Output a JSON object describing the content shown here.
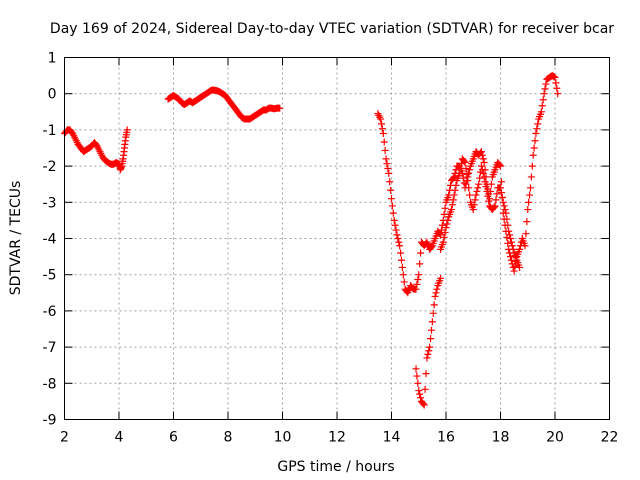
{
  "chart_data": {
    "type": "scatter",
    "title": "Day 169 of 2024, Sidereal Day-to-day VTEC variation (SDTVAR) for receiver bcar",
    "xlabel": "GPS time / hours",
    "ylabel": "SDTVAR / TECUs",
    "xlim": [
      2,
      22
    ],
    "ylim": [
      -9,
      1
    ],
    "xticks": [
      2,
      4,
      6,
      8,
      10,
      12,
      14,
      16,
      18,
      20,
      22
    ],
    "yticks": [
      1,
      0,
      -1,
      -2,
      -3,
      -4,
      -5,
      -6,
      -7,
      -8,
      -9
    ],
    "grid": true,
    "marker": "+",
    "series": [
      {
        "name": "bcar",
        "color": "#ff0000",
        "segments": [
          {
            "x": [
              2.0,
              2.1,
              2.2,
              2.3,
              2.4,
              2.5,
              2.6,
              2.7,
              2.8,
              2.9,
              3.0,
              3.1,
              3.2,
              3.3,
              3.4,
              3.5,
              3.6,
              3.7,
              3.8,
              3.9,
              4.0,
              4.05,
              4.1,
              4.15,
              4.2,
              4.25,
              4.3
            ],
            "y": [
              -1.1,
              -1.0,
              -1.0,
              -1.1,
              -1.25,
              -1.4,
              -1.5,
              -1.6,
              -1.55,
              -1.5,
              -1.45,
              -1.35,
              -1.45,
              -1.6,
              -1.75,
              -1.85,
              -1.9,
              -1.95,
              -1.95,
              -1.9,
              -1.95,
              -2.1,
              -2.0,
              -1.8,
              -1.5,
              -1.2,
              -1.0
            ]
          },
          {
            "x": [
              5.8,
              5.9,
              6.0,
              6.1,
              6.2,
              6.3,
              6.4,
              6.5,
              6.6,
              6.7,
              6.8,
              6.9,
              7.0,
              7.1,
              7.2,
              7.3,
              7.4,
              7.5,
              7.6,
              7.7,
              7.8,
              7.9,
              8.0,
              8.1,
              8.2,
              8.3,
              8.4,
              8.5,
              8.6,
              8.7,
              8.8,
              8.9,
              9.0,
              9.1,
              9.2,
              9.3,
              9.4,
              9.5,
              9.6,
              9.7,
              9.8,
              9.9
            ],
            "y": [
              -0.15,
              -0.1,
              -0.05,
              -0.1,
              -0.15,
              -0.25,
              -0.3,
              -0.25,
              -0.2,
              -0.25,
              -0.2,
              -0.15,
              -0.1,
              -0.05,
              0.0,
              0.05,
              0.1,
              0.1,
              0.08,
              0.05,
              0.0,
              -0.05,
              -0.15,
              -0.25,
              -0.35,
              -0.45,
              -0.55,
              -0.65,
              -0.7,
              -0.7,
              -0.7,
              -0.65,
              -0.6,
              -0.55,
              -0.5,
              -0.45,
              -0.45,
              -0.4,
              -0.4,
              -0.42,
              -0.4,
              -0.4
            ]
          },
          {
            "x": [
              13.5,
              13.6,
              13.7,
              13.8,
              13.9,
              14.0,
              14.1,
              14.2,
              14.3,
              14.4,
              14.5,
              14.6,
              14.7,
              14.8,
              14.9,
              15.0,
              15.1,
              15.2,
              15.3,
              15.4,
              15.5,
              15.6,
              15.7,
              15.8,
              15.9,
              16.0,
              16.1,
              16.2,
              16.3,
              16.4,
              16.5,
              16.6,
              16.7,
              16.8,
              16.9,
              17.0,
              17.1,
              17.2,
              17.3,
              17.4,
              17.5,
              17.6,
              17.7,
              17.8,
              17.9,
              18.0,
              18.1,
              18.2,
              18.3,
              18.4,
              18.5,
              18.6,
              18.7,
              18.8,
              18.9,
              19.0,
              19.1,
              19.2,
              19.3,
              19.4,
              19.5,
              19.6,
              19.7,
              19.8,
              19.9,
              20.0,
              20.1
            ],
            "y": [
              -0.55,
              -0.7,
              -1.1,
              -1.8,
              -2.2,
              -2.9,
              -3.5,
              -3.9,
              -4.2,
              -4.8,
              -5.4,
              -5.5,
              -5.3,
              -5.4,
              -5.4,
              -5.0,
              -4.1,
              -4.2,
              -4.1,
              -4.3,
              -4.2,
              -4.0,
              -3.8,
              -3.9,
              -3.5,
              -3.0,
              -2.8,
              -2.4,
              -2.3,
              -2.0,
              -2.0,
              -2.2,
              -2.6,
              -2.3,
              -2.0,
              -1.8,
              -1.6,
              -1.7,
              -1.6,
              -1.9,
              -2.5,
              -2.9,
              -2.3,
              -2.1,
              -1.9,
              -2.0,
              -3.3,
              -3.8,
              -4.3,
              -4.6,
              -4.9,
              -4.5,
              -4.3,
              -4.0,
              -4.2,
              -3.2,
              -2.6,
              -1.7,
              -1.1,
              -0.7,
              -0.5,
              0.0,
              0.4,
              0.45,
              0.5,
              0.45,
              0.0
            ]
          },
          {
            "x": [
              14.9,
              15.0,
              15.1,
              15.2,
              15.3,
              15.4,
              15.5,
              15.6,
              15.7,
              15.8
            ],
            "y": [
              -7.6,
              -8.2,
              -8.5,
              -8.6,
              -7.3,
              -7.0,
              -6.3,
              -5.6,
              -5.3,
              -5.1
            ]
          },
          {
            "x": [
              15.8,
              15.9,
              16.0,
              16.1,
              16.2,
              16.3,
              16.4,
              16.5,
              16.6,
              16.7,
              16.8,
              16.9,
              17.0,
              17.1,
              17.2,
              17.3,
              17.4,
              17.5,
              17.6,
              17.7,
              17.8,
              17.9,
              18.0,
              18.1,
              18.2,
              18.3,
              18.4,
              18.5,
              18.6,
              18.7
            ],
            "y": [
              -4.3,
              -4.1,
              -3.7,
              -3.4,
              -3.2,
              -2.8,
              -2.4,
              -2.2,
              -1.8,
              -1.9,
              -2.4,
              -3.0,
              -3.2,
              -2.8,
              -2.5,
              -2.0,
              -2.3,
              -2.7,
              -3.1,
              -3.2,
              -3.1,
              -2.6,
              -2.6,
              -3.0,
              -3.3,
              -3.8,
              -4.1,
              -4.4,
              -4.6,
              -4.8
            ]
          }
        ]
      }
    ]
  }
}
